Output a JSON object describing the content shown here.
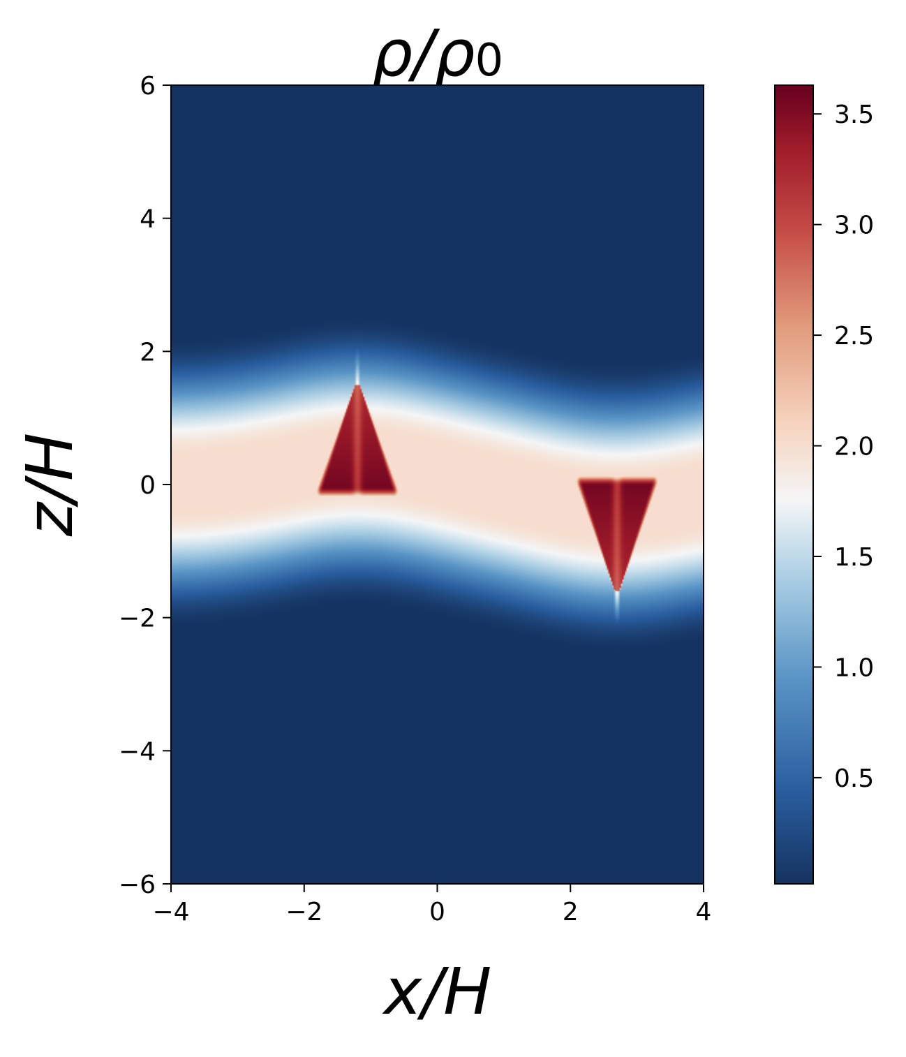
{
  "chart_data": {
    "type": "heatmap",
    "title": "ρ/ρ₀",
    "title_main": "ρ/ρ",
    "title_subscript": "0",
    "xlabel": "x/H",
    "ylabel": "z/H",
    "xlim": [
      -4,
      4
    ],
    "ylim": [
      -6,
      6
    ],
    "x_ticks": [
      -4,
      -2,
      0,
      2,
      4
    ],
    "x_tick_labels": [
      "−4",
      "−2",
      "0",
      "2",
      "4"
    ],
    "y_ticks": [
      -6,
      -4,
      -2,
      0,
      2,
      4,
      6
    ],
    "y_tick_labels": [
      "−6",
      "−4",
      "−2",
      "0",
      "2",
      "4",
      "6"
    ],
    "colormap": "RdBu_r",
    "colorbar": {
      "range": [
        0.02,
        3.63
      ],
      "ticks": [
        0.5,
        1.0,
        1.5,
        2.0,
        2.5,
        3.0,
        3.5
      ],
      "tick_labels": [
        "0.5",
        "1.0",
        "1.5",
        "2.0",
        "2.5",
        "3.0",
        "3.5"
      ],
      "placement": "right"
    },
    "field_features": {
      "background_value": 0.02,
      "dense_layer": {
        "z_center": 0.0,
        "half_width_z": 1.6,
        "peak_value": 2.0
      },
      "clumps": [
        {
          "x": -1.2,
          "z_base": -0.25,
          "z_apex": 1.5,
          "tail_top_z": 2.2,
          "peak_value": 3.6,
          "orientation": "apex-up"
        },
        {
          "x": 2.7,
          "z_base": 0.2,
          "z_apex": -1.6,
          "tail_top_z": -2.2,
          "peak_value": 3.6,
          "orientation": "apex-down"
        }
      ]
    },
    "grid": false
  }
}
